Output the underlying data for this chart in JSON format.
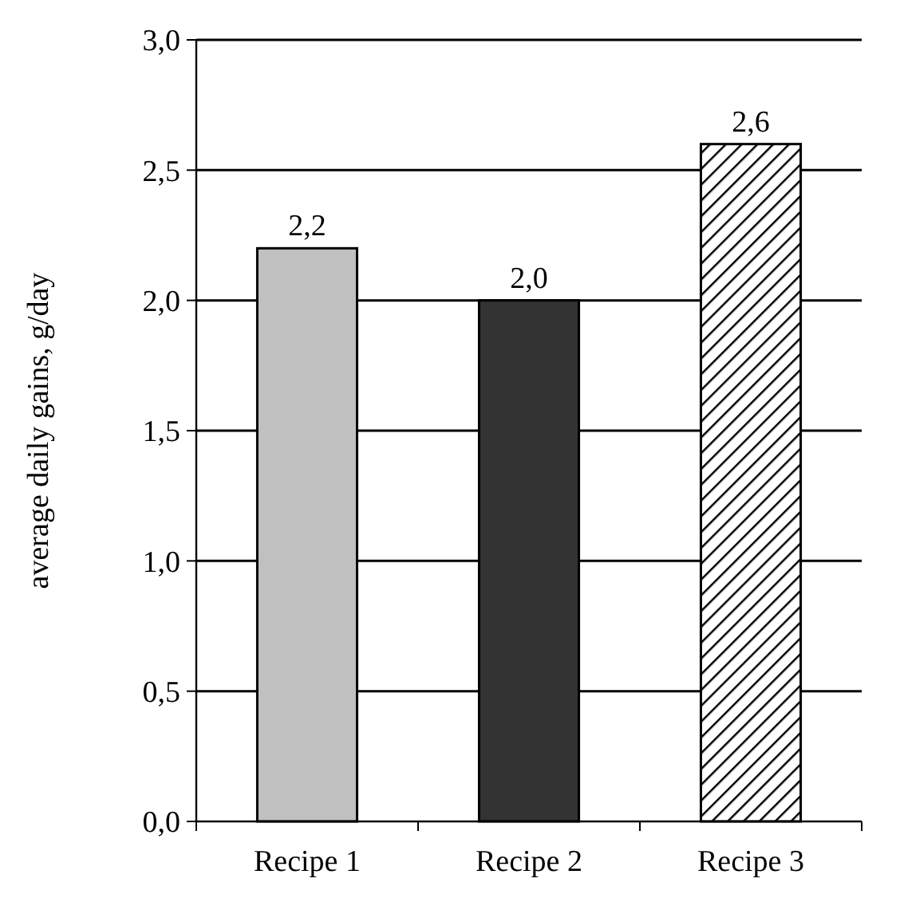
{
  "chart_data": {
    "type": "bar",
    "ylabel": "average  daily gains, g/day",
    "categories": [
      "Recipe 1",
      "Recipe 2",
      "Recipe 3"
    ],
    "values": [
      2.2,
      2.0,
      2.6
    ],
    "colors": [
      "#c0c0c0",
      "#333333",
      "#000000"
    ],
    "value_labels": [
      "2,2",
      "2,0",
      "2,6"
    ],
    "ylim": [
      0,
      3
    ],
    "yticks": [
      {
        "value": 0,
        "label": "0,0"
      },
      {
        "value": 0.5,
        "label": "0,5"
      },
      {
        "value": 1,
        "label": "1,0"
      },
      {
        "value": 1.5,
        "label": "1,5"
      },
      {
        "value": 2,
        "label": "2,0"
      },
      {
        "value": 2.5,
        "label": "2,5"
      },
      {
        "value": 3,
        "label": "3,0"
      }
    ],
    "grid": "y"
  }
}
